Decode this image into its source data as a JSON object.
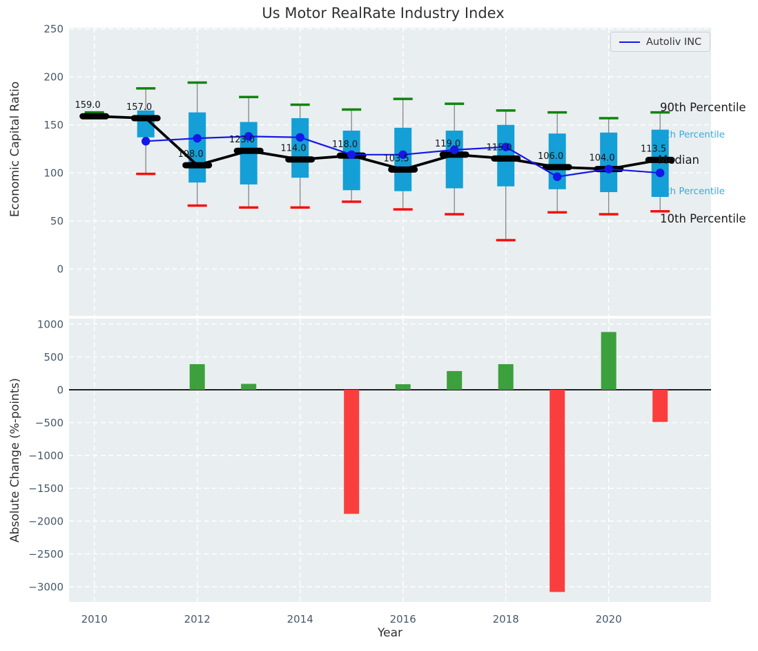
{
  "title": "Us Motor RealRate Industry Index",
  "legend": {
    "entries": [
      "Autoliv INC"
    ],
    "position": "upper right"
  },
  "annotations": {
    "p90": "90th Percentile",
    "p75": "75th Percentile",
    "median": "Median",
    "p25": "25th Percentile",
    "p10": "10th Percentile"
  },
  "colors": {
    "plot_bg": "#e9eef0",
    "grid": "#ffffff",
    "tick_text": "#46586b",
    "box_fill": "#149fd6",
    "whisker": "#7c7c7c",
    "cap_high": "#0d840d",
    "cap_low": "#f50f0f",
    "median_line": "#000000",
    "company_line": "#1518e8",
    "bar_positive": "#3ca03c",
    "bar_negative": "#fa3e3e",
    "annotation_cyan": "#38abd8",
    "annotation_black": "#1a1a1a"
  },
  "chart_data": [
    {
      "type": "box",
      "title": "Us Motor RealRate Industry Index",
      "ylabel": "Economic Capital Ratio",
      "xlabel": "Year",
      "ylim": [
        -45,
        252
      ],
      "yticks": [
        0,
        50,
        100,
        150,
        200,
        250
      ],
      "xticks": [
        2010,
        2012,
        2014,
        2016,
        2018,
        2020
      ],
      "grid": true,
      "legend_position": "upper right",
      "years": [
        2010,
        2011,
        2012,
        2013,
        2014,
        2015,
        2016,
        2017,
        2018,
        2019,
        2020,
        2021
      ],
      "series": [
        {
          "name": "90th Percentile",
          "values": [
            163,
            188,
            194,
            179,
            171,
            166,
            177,
            172,
            165,
            163,
            157,
            163
          ]
        },
        {
          "name": "75th Percentile",
          "values": [
            160.5,
            165,
            163,
            153,
            157,
            144,
            147,
            144,
            150,
            141,
            142,
            145
          ]
        },
        {
          "name": "Median",
          "values": [
            159,
            157,
            108,
            123,
            114,
            118,
            103.5,
            119,
            115,
            106,
            104,
            113.5
          ]
        },
        {
          "name": "25th Percentile",
          "values": [
            158.5,
            137,
            90,
            88,
            95,
            82,
            81,
            84,
            86,
            83,
            80,
            75
          ]
        },
        {
          "name": "10th Percentile",
          "values": [
            158,
            99,
            66,
            64,
            64,
            70,
            62,
            57,
            30,
            59,
            57,
            60
          ]
        },
        {
          "name": "Autoliv INC",
          "values": [
            null,
            133,
            136,
            138,
            137,
            119,
            119,
            124,
            127,
            96,
            104,
            100
          ]
        }
      ],
      "median_labels": [
        "159.0",
        "157.0",
        "108.0",
        "123.0",
        "114.0",
        "118.0",
        "103.5",
        "119.0",
        "115.0",
        "106.0",
        "104.0",
        "113.5"
      ]
    },
    {
      "type": "bar",
      "ylabel": "Absolute Change (%-points)",
      "xlabel": "Year",
      "ylim": [
        -3285,
        1115
      ],
      "yticks": [
        1000,
        500,
        0,
        -500,
        -1000,
        -1500,
        -2000,
        -2500,
        -3000
      ],
      "xticks": [
        2010,
        2012,
        2014,
        2016,
        2018,
        2020
      ],
      "grid": true,
      "years": [
        2010,
        2011,
        2012,
        2013,
        2014,
        2015,
        2016,
        2017,
        2018,
        2019,
        2020,
        2021
      ],
      "values": [
        null,
        null,
        390,
        90,
        null,
        -1890,
        85,
        285,
        390,
        -3080,
        880,
        -490
      ]
    }
  ]
}
